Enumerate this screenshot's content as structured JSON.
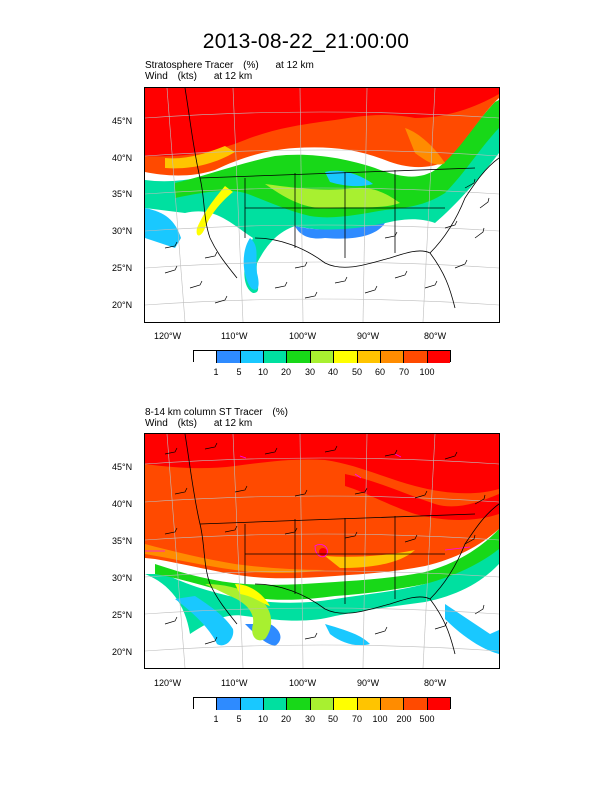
{
  "title": "2013-08-22_21:00:00",
  "panels": [
    {
      "name": "stratosphere-tracer",
      "line1": {
        "field": "Stratosphere Tracer",
        "units": "(%)",
        "level": "at   12 km"
      },
      "line2": {
        "field": "Wind",
        "units": "(kts)",
        "level": "at   12 km"
      },
      "lat_labels": [
        "45°N",
        "40°N",
        "35°N",
        "30°N",
        "25°N",
        "20°N"
      ],
      "lon_labels": [
        "120°W",
        "110°W",
        "100°W",
        "90°W",
        "80°W"
      ],
      "colorbar": {
        "levels": [
          "1",
          "5",
          "10",
          "20",
          "30",
          "40",
          "50",
          "60",
          "70",
          "100"
        ],
        "colors": [
          "#ffffff",
          "#2e8bff",
          "#19c8ff",
          "#00e0a0",
          "#18d818",
          "#a8f030",
          "#ffff00",
          "#ffc400",
          "#ff8c00",
          "#ff4a00",
          "#ff0000"
        ]
      }
    },
    {
      "name": "column-st-tracer",
      "line1": {
        "field": "8-14 km column ST Tracer",
        "units": "(%)",
        "level": ""
      },
      "line2": {
        "field": "Wind",
        "units": "(kts)",
        "level": "at   12 km"
      },
      "lat_labels": [
        "45°N",
        "40°N",
        "35°N",
        "30°N",
        "25°N",
        "20°N"
      ],
      "lon_labels": [
        "120°W",
        "110°W",
        "100°W",
        "90°W",
        "80°W"
      ],
      "colorbar": {
        "levels": [
          "1",
          "5",
          "10",
          "20",
          "30",
          "50",
          "70",
          "100",
          "200",
          "500"
        ],
        "colors": [
          "#ffffff",
          "#2e8bff",
          "#19c8ff",
          "#00e0a0",
          "#18d818",
          "#a8f030",
          "#ffff00",
          "#ffc400",
          "#ff8c00",
          "#ff4a00",
          "#ff0000"
        ]
      }
    }
  ]
}
